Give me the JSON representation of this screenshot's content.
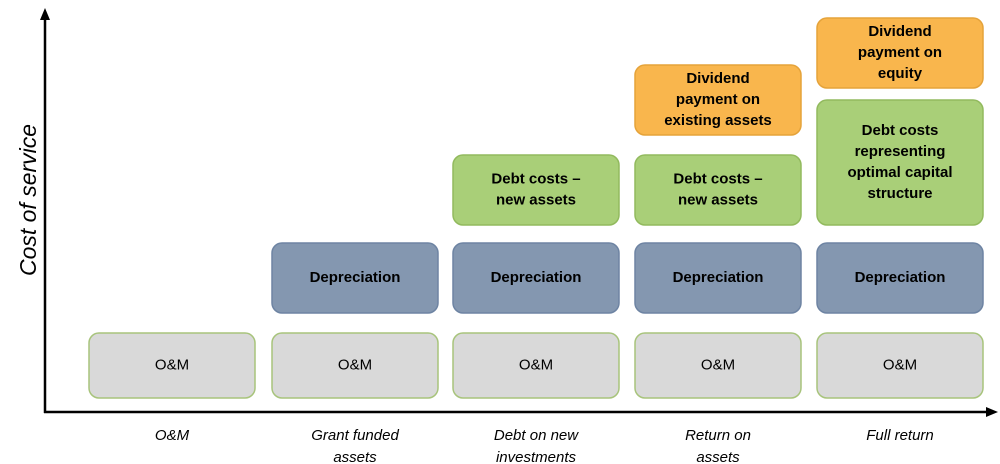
{
  "y_axis_label": "Cost of service",
  "columns": [
    {
      "label": [
        "O&M"
      ],
      "blocks": [
        [
          "O&M"
        ]
      ]
    },
    {
      "label": [
        "Grant funded",
        "assets"
      ],
      "blocks": [
        [
          "O&M"
        ],
        [
          "Depreciation"
        ]
      ]
    },
    {
      "label": [
        "Debt on new",
        "investments"
      ],
      "blocks": [
        [
          "O&M"
        ],
        [
          "Depreciation"
        ],
        [
          "Debt costs –",
          "new assets"
        ]
      ]
    },
    {
      "label": [
        "Return on",
        "assets"
      ],
      "blocks": [
        [
          "O&M"
        ],
        [
          "Depreciation"
        ],
        [
          "Debt costs –",
          "new assets"
        ],
        [
          "Dividend",
          "payment on",
          "existing assets"
        ]
      ]
    },
    {
      "label": [
        "Full return"
      ],
      "blocks": [
        [
          "O&M"
        ],
        [
          "Depreciation"
        ],
        [
          "Debt costs",
          "representing",
          "optimal capital",
          "structure"
        ],
        [
          "Dividend",
          "payment on",
          "equity"
        ]
      ]
    }
  ]
}
